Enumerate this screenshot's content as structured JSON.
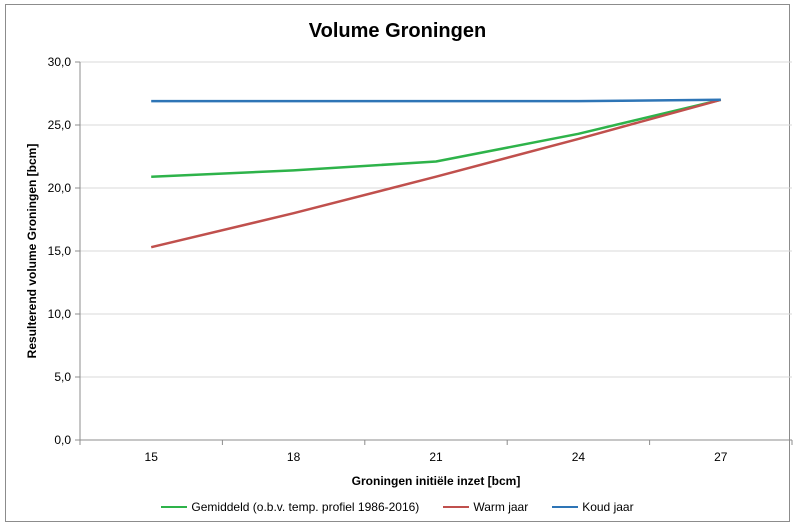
{
  "chart_data": {
    "type": "line",
    "title": "Volume Groningen",
    "xlabel": "Groningen initiële inzet [bcm]",
    "ylabel": "Resulterend volume  Groningen [bcm]",
    "x": [
      15,
      18,
      21,
      24,
      27
    ],
    "x_tick_labels": [
      "15",
      "18",
      "21",
      "24",
      "27"
    ],
    "xlim": [
      13.5,
      28.5
    ],
    "ylim": [
      0,
      30
    ],
    "y_tick_labels": [
      "0,0",
      "5,0",
      "10,0",
      "15,0",
      "20,0",
      "25,0",
      "30,0"
    ],
    "grid": "horizontal",
    "legend_position": "bottom",
    "series": [
      {
        "name": "Gemiddeld (o.b.v. temp. profiel 1986-2016)",
        "color": "#2eb34a",
        "values": [
          20.9,
          21.4,
          22.1,
          24.3,
          27.0
        ]
      },
      {
        "name": "Warm jaar",
        "color": "#c0504d",
        "values": [
          15.3,
          18.0,
          20.9,
          23.9,
          27.0
        ]
      },
      {
        "name": "Koud jaar",
        "color": "#2e75b6",
        "values": [
          26.9,
          26.9,
          26.9,
          26.9,
          27.0
        ]
      }
    ]
  }
}
